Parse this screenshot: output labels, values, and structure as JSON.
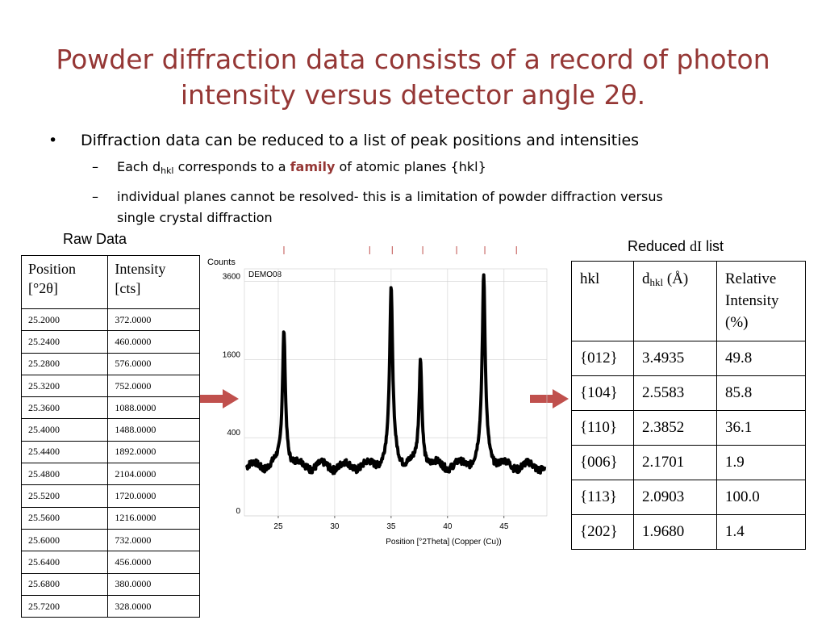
{
  "title_line1": "Powder diffraction data consists of a record of photon",
  "title_line2": "intensity versus detector angle 2θ.",
  "bullets": {
    "b1": "Diffraction data can be reduced to a list of peak positions and intensities",
    "b2_pre": "Each d",
    "b2_sub": "hkl",
    "b2_mid": " corresponds to a ",
    "b2_bold": "family",
    "b2_post": " of atomic planes {hkl}",
    "b3_line1": "individual planes cannot be resolved- this is a limitation of powder diffraction versus",
    "b3_line2": "single crystal diffraction",
    "dot": "•",
    "dash": "–"
  },
  "raw_label": "Raw Data",
  "reduced_label_pre": "Reduced ",
  "reduced_label_ser": "dI",
  "reduced_label_post": " list",
  "raw_table": {
    "h1_l1": "Position",
    "h1_l2": "[°2θ]",
    "h2_l1": "Intensity",
    "h2_l2": "[cts]",
    "rows": [
      [
        "25.2000",
        "372.0000"
      ],
      [
        "25.2400",
        "460.0000"
      ],
      [
        "25.2800",
        "576.0000"
      ],
      [
        "25.3200",
        "752.0000"
      ],
      [
        "25.3600",
        "1088.0000"
      ],
      [
        "25.4000",
        "1488.0000"
      ],
      [
        "25.4400",
        "1892.0000"
      ],
      [
        "25.4800",
        "2104.0000"
      ],
      [
        "25.5200",
        "1720.0000"
      ],
      [
        "25.5600",
        "1216.0000"
      ],
      [
        "25.6000",
        "732.0000"
      ],
      [
        "25.6400",
        "456.0000"
      ],
      [
        "25.6800",
        "380.0000"
      ],
      [
        "25.7200",
        "328.0000"
      ]
    ]
  },
  "reduced_table": {
    "h1": "hkl",
    "h2_pre": "d",
    "h2_sub": "hkl",
    "h2_post": " (Å)",
    "h3_l1": "Relative",
    "h3_l2": "Intensity",
    "h3_l3": "(%)",
    "rows": [
      [
        "{012}",
        "3.4935",
        "49.8"
      ],
      [
        "{104}",
        "2.5583",
        "85.8"
      ],
      [
        "{110}",
        "2.3852",
        "36.1"
      ],
      [
        "{006}",
        "2.1701",
        "1.9"
      ],
      [
        "{113}",
        "2.0903",
        "100.0"
      ],
      [
        "{202}",
        "1.9680",
        "1.4"
      ]
    ]
  },
  "colors": {
    "title": "#953735",
    "arrow": "#C0504D",
    "tick_marks": "#C0504D"
  },
  "chart_data": {
    "type": "line",
    "ylabel": "Counts",
    "xlabel": "Position [°2Theta] (Copper (Cu))",
    "sample_label": "DEMO08",
    "xlim": [
      22.0,
      48.8
    ],
    "y_scale": "sqrt",
    "ylim": [
      0,
      4000
    ],
    "yticks": [
      0,
      400,
      1600,
      3600
    ],
    "ytick_labels": [
      "0",
      "400",
      "1600",
      "3600"
    ],
    "xticks": [
      25,
      30,
      35,
      40,
      45
    ],
    "xtick_labels": [
      "25",
      "30",
      "35",
      "40",
      "45"
    ],
    "reference_markers": [
      25.5,
      33.1,
      35.1,
      37.8,
      40.8,
      43.3,
      46.1
    ],
    "baseline_counts": 160,
    "peaks": [
      {
        "x": 25.5,
        "height": 2104,
        "width": 0.12
      },
      {
        "x": 35.0,
        "height": 3250,
        "width": 0.12
      },
      {
        "x": 37.6,
        "height": 1450,
        "width": 0.12
      },
      {
        "x": 43.2,
        "height": 3650,
        "width": 0.12
      }
    ]
  }
}
